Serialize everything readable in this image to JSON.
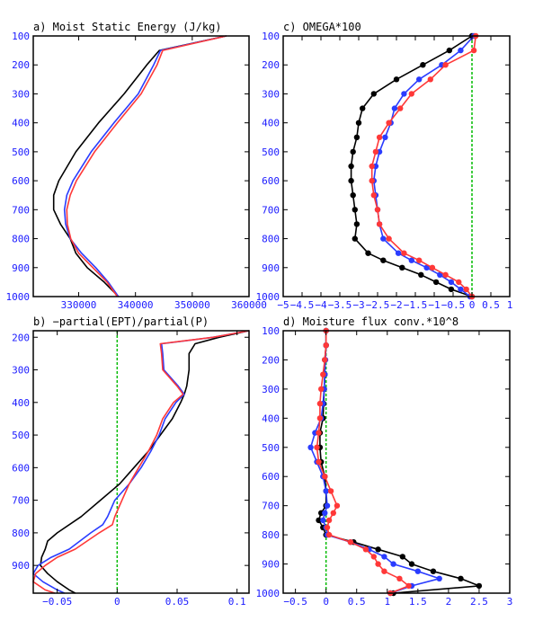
{
  "colors": {
    "background": "#ffffff",
    "frame": "#000000",
    "tick_label": "#1a1aff",
    "zero_line": "#00bb00"
  },
  "chart_data": [
    {
      "id": "a",
      "type": "line",
      "title": "a) Moist Static Energy (J/kg)",
      "xlim": [
        322000,
        360000
      ],
      "ylim": [
        1000,
        100
      ],
      "yticks": [
        100,
        200,
        300,
        400,
        500,
        600,
        700,
        800,
        900,
        1000
      ],
      "xticks": [
        330000,
        340000,
        350000,
        360000
      ],
      "xtick_labels": [
        "330000",
        "340000",
        "350000",
        "360000"
      ],
      "zero_line": false,
      "markers": false,
      "series": [
        {
          "color": "#000000",
          "p": [
            100,
            150,
            200,
            300,
            400,
            500,
            600,
            650,
            700,
            750,
            800,
            850,
            900,
            950,
            1000
          ],
          "x": [
            356000,
            344200,
            342000,
            338000,
            333500,
            329500,
            326500,
            325600,
            325600,
            326800,
            328500,
            329500,
            331500,
            334500,
            337000
          ]
        },
        {
          "color": "#2a3cff",
          "p": [
            100,
            150,
            200,
            300,
            400,
            500,
            600,
            650,
            700,
            750,
            800,
            850,
            900,
            950,
            1000
          ],
          "x": [
            356000,
            344400,
            343200,
            340500,
            336200,
            332200,
            329000,
            327900,
            327500,
            327700,
            328500,
            330500,
            333000,
            335200,
            337000
          ]
        },
        {
          "color": "#ff3838",
          "p": [
            100,
            150,
            200,
            300,
            400,
            500,
            600,
            650,
            700,
            750,
            800,
            850,
            900,
            950,
            1000
          ],
          "x": [
            356000,
            344800,
            343800,
            341000,
            336800,
            332800,
            329600,
            328500,
            327900,
            328000,
            328600,
            330000,
            332500,
            335000,
            336800
          ]
        }
      ]
    },
    {
      "id": "c",
      "type": "line",
      "title": "c) OMEGA*100",
      "xlim": [
        -5,
        1
      ],
      "ylim": [
        1000,
        100
      ],
      "yticks": [
        100,
        200,
        300,
        400,
        500,
        600,
        700,
        800,
        900,
        1000
      ],
      "xticks": [
        -5,
        -4.5,
        -4,
        -3.5,
        -3,
        -2.5,
        -2,
        -1.5,
        -1,
        -0.5,
        0,
        0.5,
        1
      ],
      "xtick_labels": [
        "−5",
        "−4.5",
        "−4",
        "−3.5",
        "−3",
        "−2.5",
        "−2",
        "−1.5",
        "−1",
        "−0.5",
        "0",
        "0.5",
        "1"
      ],
      "zero_line": true,
      "markers": true,
      "series": [
        {
          "color": "#000000",
          "p": [
            100,
            150,
            200,
            250,
            300,
            350,
            400,
            450,
            500,
            550,
            600,
            650,
            700,
            750,
            800,
            850,
            875,
            900,
            925,
            950,
            975,
            1000
          ],
          "x": [
            0,
            -0.6,
            -1.3,
            -2.0,
            -2.6,
            -2.9,
            -3.0,
            -3.05,
            -3.15,
            -3.2,
            -3.2,
            -3.15,
            -3.1,
            -3.05,
            -3.1,
            -2.75,
            -2.35,
            -1.85,
            -1.35,
            -0.95,
            -0.55,
            0
          ]
        },
        {
          "color": "#2a3cff",
          "p": [
            100,
            150,
            200,
            250,
            300,
            350,
            400,
            450,
            500,
            550,
            600,
            650,
            700,
            750,
            800,
            850,
            875,
            900,
            925,
            950,
            975,
            1000
          ],
          "x": [
            0.05,
            -0.3,
            -0.8,
            -1.4,
            -1.8,
            -2.05,
            -2.15,
            -2.3,
            -2.45,
            -2.55,
            -2.6,
            -2.55,
            -2.5,
            -2.45,
            -2.35,
            -1.95,
            -1.6,
            -1.2,
            -0.85,
            -0.55,
            -0.3,
            -0.05
          ]
        },
        {
          "color": "#ff3838",
          "p": [
            100,
            150,
            200,
            250,
            300,
            350,
            400,
            450,
            500,
            550,
            600,
            650,
            700,
            750,
            800,
            850,
            875,
            900,
            925,
            950,
            975,
            1000
          ],
          "x": [
            0.1,
            0.05,
            -0.7,
            -1.1,
            -1.6,
            -1.9,
            -2.2,
            -2.45,
            -2.55,
            -2.65,
            -2.65,
            -2.6,
            -2.5,
            -2.45,
            -2.2,
            -1.8,
            -1.4,
            -1.05,
            -0.7,
            -0.35,
            -0.15,
            0
          ]
        }
      ]
    },
    {
      "id": "b",
      "type": "line",
      "title": "b) −partial(EPT)/partial(P)",
      "xlim": [
        -0.07,
        0.11
      ],
      "ylim": [
        985,
        180
      ],
      "yticks": [
        200,
        300,
        400,
        500,
        600,
        700,
        800,
        900
      ],
      "xticks": [
        -0.05,
        0,
        0.05,
        0.1
      ],
      "xtick_labels": [
        "−0.05",
        "0",
        "0.05",
        "0.1"
      ],
      "zero_line": true,
      "markers": false,
      "series": [
        {
          "color": "#000000",
          "p": [
            180,
            200,
            220,
            250,
            300,
            350,
            375,
            400,
            450,
            500,
            550,
            600,
            650,
            700,
            750,
            800,
            825,
            850,
            875,
            900,
            925,
            950,
            975,
            985
          ],
          "x": [
            0.11,
            0.085,
            0.065,
            0.06,
            0.06,
            0.058,
            0.056,
            0.053,
            0.046,
            0.036,
            0.026,
            0.014,
            0.002,
            -0.014,
            -0.03,
            -0.05,
            -0.058,
            -0.06,
            -0.063,
            -0.064,
            -0.058,
            -0.05,
            -0.04,
            -0.035
          ]
        },
        {
          "color": "#2a3cff",
          "p": [
            180,
            200,
            220,
            250,
            300,
            350,
            375,
            400,
            450,
            500,
            550,
            600,
            650,
            700,
            750,
            775,
            800,
            850,
            875,
            900,
            925,
            950,
            975,
            985
          ],
          "x": [
            0.11,
            0.08,
            0.037,
            0.038,
            0.039,
            0.051,
            0.056,
            0.049,
            0.04,
            0.035,
            0.028,
            0.02,
            0.01,
            -0.002,
            -0.008,
            -0.012,
            -0.022,
            -0.04,
            -0.055,
            -0.066,
            -0.07,
            -0.062,
            -0.05,
            -0.044
          ]
        },
        {
          "color": "#ff3838",
          "p": [
            180,
            200,
            220,
            250,
            300,
            350,
            375,
            400,
            450,
            500,
            550,
            600,
            650,
            700,
            750,
            775,
            800,
            850,
            875,
            900,
            925,
            950,
            975,
            985
          ],
          "x": [
            0.11,
            0.08,
            0.036,
            0.037,
            0.038,
            0.05,
            0.055,
            0.047,
            0.038,
            0.033,
            0.026,
            0.018,
            0.01,
            0.004,
            -0.002,
            -0.004,
            -0.015,
            -0.035,
            -0.05,
            -0.06,
            -0.068,
            -0.07,
            -0.06,
            -0.052
          ]
        }
      ]
    },
    {
      "id": "d",
      "type": "line",
      "title": "d) Moisture flux conv.*10^8",
      "xlim": [
        -0.7,
        3
      ],
      "ylim": [
        1000,
        100
      ],
      "yticks": [
        100,
        200,
        300,
        400,
        500,
        600,
        700,
        800,
        900,
        1000
      ],
      "xticks": [
        -0.5,
        0,
        0.5,
        1,
        1.5,
        2,
        2.5,
        3
      ],
      "xtick_labels": [
        "−0.5",
        "0",
        "0.5",
        "1",
        "1.5",
        "2",
        "2.5",
        "3"
      ],
      "zero_line": true,
      "markers": true,
      "series": [
        {
          "color": "#000000",
          "p": [
            100,
            150,
            200,
            250,
            300,
            350,
            400,
            450,
            500,
            550,
            600,
            650,
            700,
            725,
            750,
            775,
            800,
            825,
            850,
            875,
            900,
            925,
            950,
            975,
            1000
          ],
          "x": [
            0,
            0,
            -0.02,
            -0.02,
            -0.03,
            -0.04,
            -0.05,
            -0.1,
            -0.1,
            -0.08,
            -0.02,
            0,
            0,
            -0.08,
            -0.12,
            -0.05,
            0,
            0.45,
            0.85,
            1.25,
            1.4,
            1.75,
            2.2,
            2.5,
            1.1
          ]
        },
        {
          "color": "#2a3cff",
          "p": [
            100,
            150,
            200,
            250,
            300,
            350,
            400,
            450,
            500,
            550,
            600,
            650,
            700,
            725,
            750,
            775,
            800,
            825,
            850,
            875,
            900,
            925,
            950,
            975,
            1000
          ],
          "x": [
            0,
            0,
            -0.01,
            -0.02,
            -0.03,
            -0.05,
            -0.08,
            -0.18,
            -0.25,
            -0.15,
            -0.05,
            0,
            0.02,
            -0.02,
            -0.05,
            0,
            0.02,
            0.4,
            0.7,
            0.95,
            1.1,
            1.5,
            1.85,
            1.4,
            1.05
          ]
        },
        {
          "color": "#ff3838",
          "p": [
            100,
            150,
            200,
            250,
            300,
            350,
            400,
            450,
            500,
            550,
            600,
            650,
            700,
            725,
            750,
            775,
            800,
            825,
            850,
            875,
            900,
            925,
            950,
            975,
            1000
          ],
          "x": [
            0,
            0,
            -0.02,
            -0.05,
            -0.08,
            -0.1,
            -0.1,
            -0.12,
            -0.15,
            -0.12,
            -0.02,
            0.08,
            0.18,
            0.12,
            0.05,
            0.02,
            0.05,
            0.4,
            0.65,
            0.78,
            0.85,
            0.95,
            1.2,
            1.35,
            1.05
          ]
        }
      ]
    }
  ]
}
